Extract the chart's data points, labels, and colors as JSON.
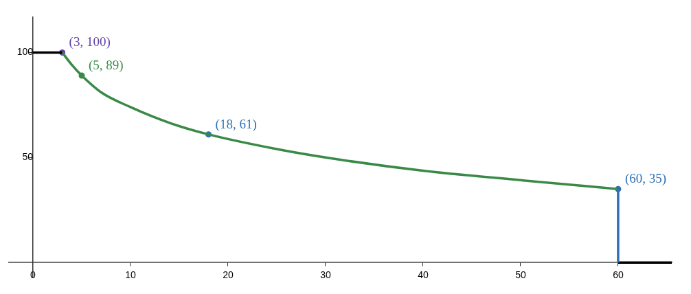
{
  "chart_data": {
    "type": "line",
    "xlim": [
      -2.5,
      65.5
    ],
    "ylim": [
      -7,
      117
    ],
    "xticks": [
      0,
      10,
      20,
      30,
      40,
      50,
      60
    ],
    "yticks": [
      50,
      100
    ],
    "grid": false,
    "legend": false,
    "line_style": "solid",
    "series": [
      {
        "color": "#000000",
        "marker": "none",
        "x": [
          0,
          3
        ],
        "values": [
          100,
          100
        ]
      },
      {
        "color": "#3a8a47",
        "marker": "none",
        "x": [
          3,
          4,
          5,
          7,
          10,
          14,
          18,
          25,
          30,
          40,
          50,
          60
        ],
        "values": [
          100,
          94,
          89,
          81,
          74,
          66.5,
          61,
          54,
          50,
          43.7,
          39.2,
          35
        ]
      },
      {
        "color": "#2d70b3",
        "marker": "none",
        "x": [
          60,
          60
        ],
        "values": [
          35,
          0
        ]
      },
      {
        "color": "#000000",
        "marker": "none",
        "x": [
          60,
          65.5
        ],
        "values": [
          0,
          0
        ]
      },
      {
        "type": "scatter",
        "color": "#6042a6",
        "marker": "circle",
        "x": [
          3
        ],
        "values": [
          100
        ]
      },
      {
        "type": "scatter",
        "color": "#3a8a47",
        "marker": "circle",
        "x": [
          5
        ],
        "values": [
          89
        ]
      },
      {
        "type": "scatter",
        "color": "#2d70b3",
        "marker": "circle",
        "x": [
          18,
          60
        ],
        "values": [
          61,
          35
        ]
      }
    ],
    "annotations": [
      {
        "text": "(3, 100)",
        "x": 3,
        "y": 100
      },
      {
        "text": "(5, 89)",
        "x": 5,
        "y": 89
      },
      {
        "text": "(18, 61)",
        "x": 18,
        "y": 61
      },
      {
        "text": "(60, 35)",
        "x": 60,
        "y": 35
      }
    ]
  }
}
